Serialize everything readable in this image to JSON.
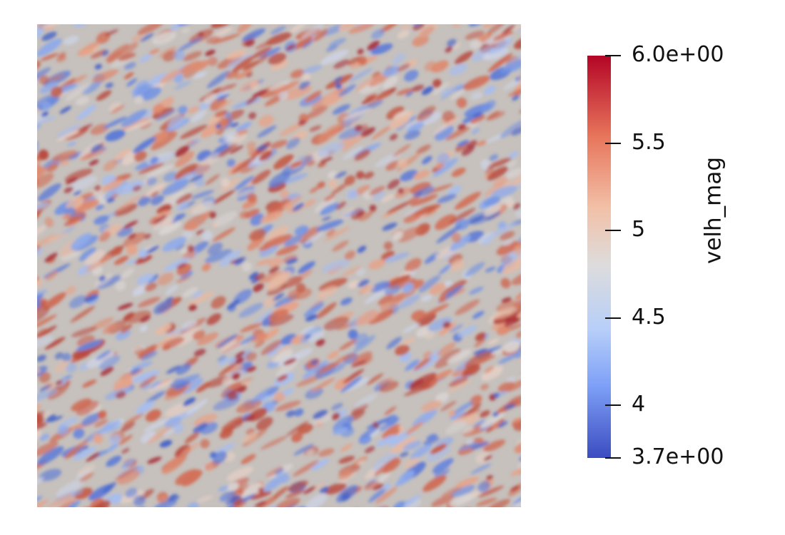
{
  "colorbar": {
    "title": "velh_mag",
    "min": 3.7,
    "max": 6.0,
    "colormap": "coolwarm",
    "colors": {
      "low": "#3b4cc0",
      "mid": "#dddcdc",
      "high": "#b40426"
    },
    "ticks": [
      {
        "value": 6.0,
        "label": "6.0e+00"
      },
      {
        "value": 5.5,
        "label": "5.5"
      },
      {
        "value": 5.0,
        "label": "5"
      },
      {
        "value": 4.5,
        "label": "4.5"
      },
      {
        "value": 4.0,
        "label": "4"
      },
      {
        "value": 3.7,
        "label": "3.7e+00"
      }
    ]
  },
  "field": {
    "variable": "velh_mag",
    "description_pattern": "diagonal streaky turbulent field"
  }
}
